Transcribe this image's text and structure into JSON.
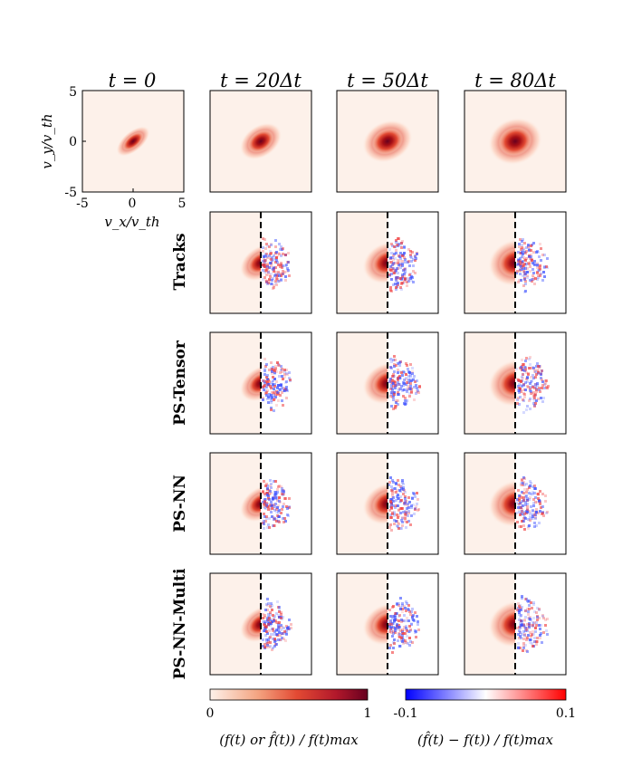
{
  "chart_data": {
    "type": "heatmap",
    "col_titles": [
      "t = 0",
      "t = 20Δt",
      "t = 50Δt",
      "t = 80Δt"
    ],
    "row_labels": [
      "Tracks",
      "PS-Tensor",
      "PS-NN",
      "PS-NN-Multi"
    ],
    "xlabel": "v_x/v_th",
    "ylabel": "v_y/v_th",
    "axis_range": [
      -5,
      5
    ],
    "ticks": [
      "-5",
      "0",
      "5"
    ],
    "split_position_x": 0,
    "colorbar_left": {
      "label": "(f(t) or f̂(t)) / f(t)max",
      "min_label": "0",
      "max_label": "1",
      "colors": [
        "#fdf1ea",
        "#f4a582",
        "#d6604d",
        "#b2182b",
        "#67001f"
      ]
    },
    "colorbar_right": {
      "label": "(f̂(t) − f(t)) / f(t)max",
      "min_label": "-0.1",
      "max_label": "0.1",
      "colors": [
        "#0000ff",
        "#ffffff",
        "#ff0000"
      ]
    }
  }
}
